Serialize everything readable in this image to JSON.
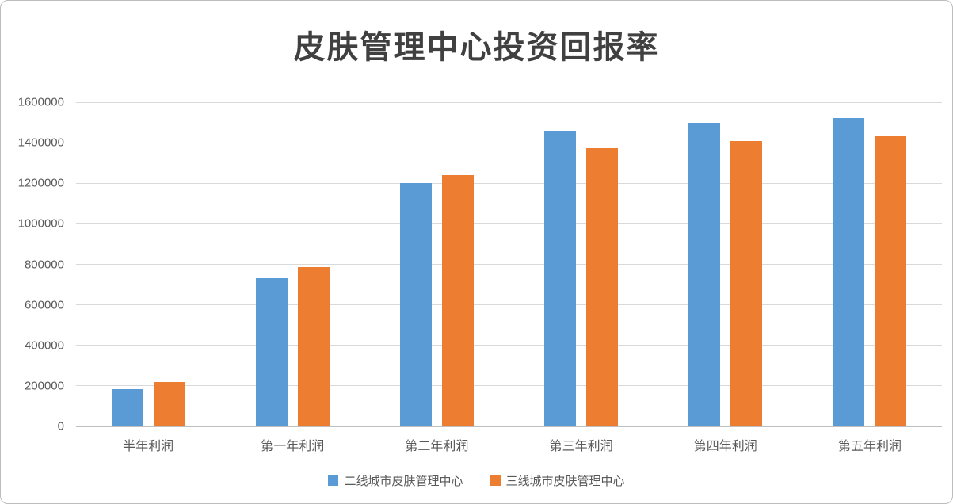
{
  "chart_data": {
    "type": "bar",
    "title": "皮肤管理中心投资回报率",
    "categories": [
      "半年利润",
      "第一年利润",
      "第二年利润",
      "第三年利润",
      "第四年利润",
      "第五年利润"
    ],
    "series": [
      {
        "name": "二线城市皮肤管理中心",
        "color": "#5B9BD5",
        "values": [
          185000,
          730000,
          1200000,
          1460000,
          1500000,
          1520000
        ]
      },
      {
        "name": "三线城市皮肤管理中心",
        "color": "#ED7D31",
        "values": [
          220000,
          785000,
          1240000,
          1375000,
          1410000,
          1430000
        ]
      }
    ],
    "xlabel": "",
    "ylabel": "",
    "ylim": [
      0,
      1600000
    ],
    "ytick_interval": 200000,
    "ytick_labels": [
      "0",
      "200000",
      "400000",
      "600000",
      "800000",
      "1000000",
      "1200000",
      "1400000",
      "1600000"
    ],
    "grid": "horizontal",
    "legend_position": "bottom"
  },
  "frame": {
    "border_color": "#BDBDBD",
    "background": "#FFFFFF"
  }
}
